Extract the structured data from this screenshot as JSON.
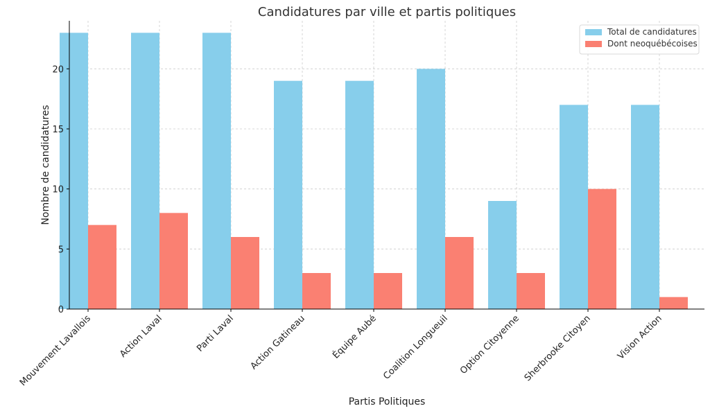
{
  "chart_data": {
    "type": "bar",
    "title": "Candidatures par ville et partis politiques",
    "xlabel": "Partis Politiques",
    "ylabel": "Nombre de candidatures",
    "categories": [
      "Mouvement Lavallois",
      "Action Laval",
      "Parti Laval",
      "Action Gatineau",
      "Équipe Aubé",
      "Coalition Longueuil",
      "Option Citoyenne",
      "Sherbrooke Citoyen",
      "Vision Action"
    ],
    "series": [
      {
        "name": "Total de candidatures",
        "color": "#87ceeb",
        "values": [
          23,
          23,
          23,
          19,
          19,
          20,
          9,
          17,
          17
        ]
      },
      {
        "name": "Dont neoquébécoises",
        "color": "#fa8072",
        "values": [
          7,
          8,
          6,
          3,
          3,
          6,
          3,
          10,
          1
        ]
      }
    ],
    "ylim": [
      0,
      24
    ],
    "yticks": [
      0,
      5,
      10,
      15,
      20
    ],
    "grid": true,
    "legend": "top-right"
  }
}
